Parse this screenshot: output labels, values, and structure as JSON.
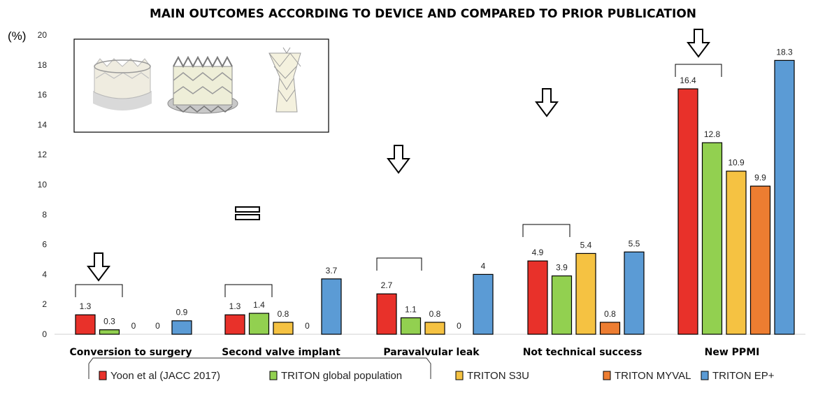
{
  "chart_data": {
    "type": "bar",
    "title": "MAIN OUTCOMES ACCORDING TO DEVICE AND COMPARED TO PRIOR PUBLICATION",
    "ylabel": "(%)",
    "ylim": [
      0,
      20
    ],
    "yticks": [
      "0",
      "2",
      "4",
      "6",
      "8",
      "10",
      "12",
      "14",
      "16",
      "18",
      "20"
    ],
    "grid": false,
    "legend_position": "bottom",
    "categories": [
      "Conversion to surgery",
      "Second valve implant",
      "Paravalvular leak",
      "Not technical success",
      "New PPMI"
    ],
    "series": [
      {
        "name": "Yoon et al (JACC 2017)",
        "color": "#e8312a",
        "values": [
          1.3,
          1.3,
          2.7,
          4.9,
          16.4
        ],
        "labels": [
          "1.3",
          "1.3",
          "2.7",
          "4.9",
          "16.4"
        ]
      },
      {
        "name": "TRITON global population",
        "color": "#92d050",
        "values": [
          0.3,
          1.4,
          1.1,
          3.9,
          12.8
        ],
        "labels": [
          "0.3",
          "1.4",
          "1.1",
          "3.9",
          "12.8"
        ]
      },
      {
        "name": "TRITON S3U",
        "color": "#f5c242",
        "values": [
          0,
          0.8,
          0.8,
          5.4,
          10.9
        ],
        "labels": [
          "0",
          "0.8",
          "0.8",
          "5.4",
          "10.9"
        ]
      },
      {
        "name": "TRITON MYVAL",
        "color": "#ed7d31",
        "values": [
          0,
          0,
          0,
          0.8,
          9.9
        ],
        "labels": [
          "0",
          "0",
          "0",
          "0.8",
          "9.9"
        ]
      },
      {
        "name": "TRITON EP+",
        "color": "#5b9bd5",
        "values": [
          0.9,
          3.7,
          4,
          5.5,
          18.3
        ],
        "labels": [
          "0.9",
          "3.7",
          "4",
          "5.5",
          "18.3"
        ]
      }
    ],
    "annotations": {
      "down_arrows_categories": [
        "Conversion to surgery",
        "Paravalvular leak",
        "Not technical success",
        "New PPMI"
      ],
      "equal_sign_category": "Second valve implant"
    }
  },
  "inset": {
    "devices": [
      "valve-device-1",
      "valve-device-2",
      "valve-device-3"
    ]
  }
}
